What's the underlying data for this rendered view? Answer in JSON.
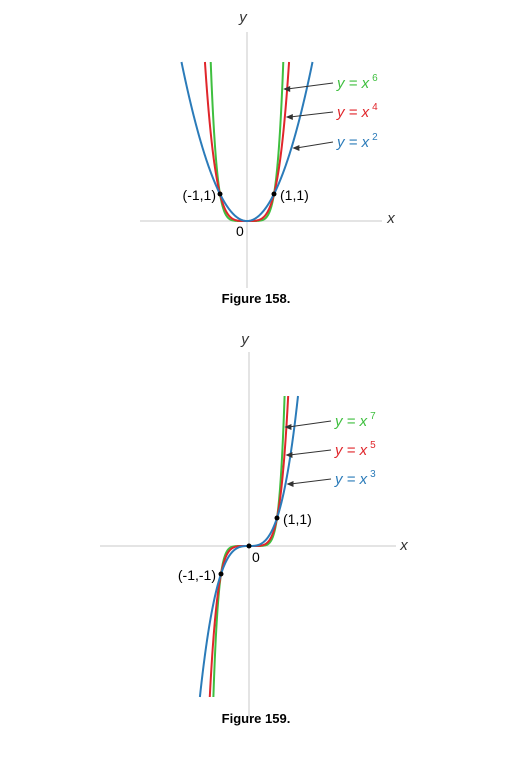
{
  "chart_data": [
    {
      "type": "line",
      "title": "Figure 158.",
      "xlabel": "x",
      "ylabel": "y",
      "origin_label": "0",
      "points": [
        {
          "label": "(-1,1)",
          "x": -1,
          "y": 1
        },
        {
          "label": "(1,1)",
          "x": 1,
          "y": 1
        }
      ],
      "series": [
        {
          "name": "y = x6",
          "label_text": "y = x",
          "exponent": "6",
          "power": 6,
          "color": "#3fbf3f"
        },
        {
          "name": "y = x4",
          "label_text": "y = x",
          "exponent": "4",
          "power": 4,
          "color": "#e0262b"
        },
        {
          "name": "y = x2",
          "label_text": "y = x",
          "exponent": "2",
          "power": 2,
          "color": "#2b7bb9"
        }
      ],
      "xlim": [
        -2.0,
        3.9
      ],
      "ylim": [
        -1.3,
        6.3
      ],
      "grid": false
    },
    {
      "type": "line",
      "title": "Figure 159.",
      "xlabel": "x",
      "ylabel": "y",
      "origin_label": "0",
      "points": [
        {
          "label": "(-1,-1)",
          "x": -1,
          "y": -1
        },
        {
          "label": "(0,0)",
          "x": 0,
          "y": 0
        },
        {
          "label": "(1,1)",
          "x": 1,
          "y": 1
        }
      ],
      "series": [
        {
          "name": "y = x7",
          "label_text": "y = x",
          "exponent": "7",
          "power": 7,
          "color": "#3fbf3f"
        },
        {
          "name": "y = x5",
          "label_text": "y = x",
          "exponent": "5",
          "power": 5,
          "color": "#e0262b"
        },
        {
          "name": "y = x3",
          "label_text": "y = x",
          "exponent": "3",
          "power": 3,
          "color": "#2b7bb9"
        }
      ],
      "xlim": [
        -5.2,
        5.6
      ],
      "ylim": [
        -5.4,
        5.4
      ],
      "grid": false
    }
  ]
}
